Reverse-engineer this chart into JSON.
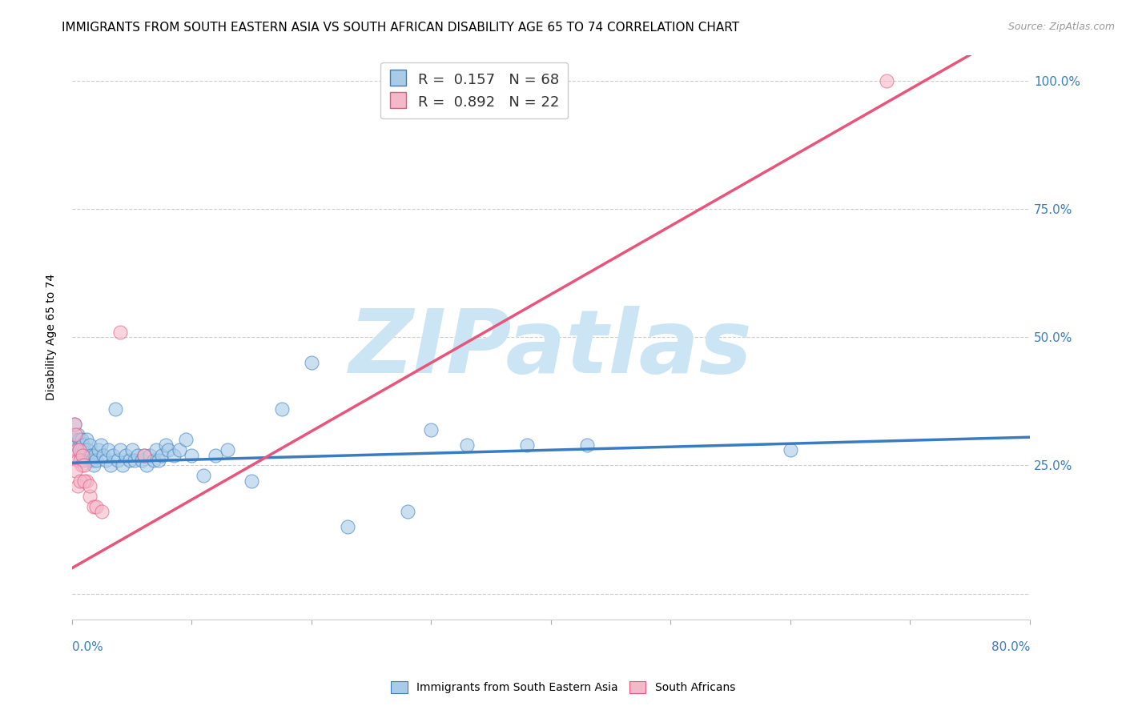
{
  "title": "IMMIGRANTS FROM SOUTH EASTERN ASIA VS SOUTH AFRICAN DISABILITY AGE 65 TO 74 CORRELATION CHART",
  "source": "Source: ZipAtlas.com",
  "ylabel": "Disability Age 65 to 74",
  "xmin": 0.0,
  "xmax": 0.8,
  "ymin": -0.05,
  "ymax": 1.05,
  "right_ytick_vals": [
    0.25,
    0.5,
    0.75,
    1.0
  ],
  "right_yticklabels": [
    "25.0%",
    "50.0%",
    "75.0%",
    "100.0%"
  ],
  "R_blue": 0.157,
  "N_blue": 68,
  "R_pink": 0.892,
  "N_pink": 22,
  "blue_color": "#a8cce8",
  "pink_color": "#f4b8cb",
  "blue_line_color": "#3a7cc1",
  "pink_line_color": "#e8547a",
  "blue_scatter": [
    [
      0.002,
      0.33
    ],
    [
      0.003,
      0.3
    ],
    [
      0.004,
      0.29
    ],
    [
      0.005,
      0.31
    ],
    [
      0.006,
      0.28
    ],
    [
      0.006,
      0.3
    ],
    [
      0.007,
      0.27
    ],
    [
      0.007,
      0.29
    ],
    [
      0.008,
      0.28
    ],
    [
      0.008,
      0.3
    ],
    [
      0.009,
      0.27
    ],
    [
      0.009,
      0.29
    ],
    [
      0.01,
      0.28
    ],
    [
      0.01,
      0.26
    ],
    [
      0.011,
      0.27
    ],
    [
      0.012,
      0.3
    ],
    [
      0.013,
      0.28
    ],
    [
      0.014,
      0.26
    ],
    [
      0.015,
      0.27
    ],
    [
      0.015,
      0.29
    ],
    [
      0.016,
      0.27
    ],
    [
      0.017,
      0.26
    ],
    [
      0.018,
      0.25
    ],
    [
      0.019,
      0.27
    ],
    [
      0.02,
      0.26
    ],
    [
      0.022,
      0.28
    ],
    [
      0.024,
      0.29
    ],
    [
      0.026,
      0.27
    ],
    [
      0.028,
      0.26
    ],
    [
      0.03,
      0.28
    ],
    [
      0.032,
      0.25
    ],
    [
      0.034,
      0.27
    ],
    [
      0.036,
      0.36
    ],
    [
      0.038,
      0.26
    ],
    [
      0.04,
      0.28
    ],
    [
      0.042,
      0.25
    ],
    [
      0.045,
      0.27
    ],
    [
      0.048,
      0.26
    ],
    [
      0.05,
      0.28
    ],
    [
      0.052,
      0.26
    ],
    [
      0.055,
      0.27
    ],
    [
      0.058,
      0.26
    ],
    [
      0.06,
      0.27
    ],
    [
      0.062,
      0.25
    ],
    [
      0.065,
      0.27
    ],
    [
      0.068,
      0.26
    ],
    [
      0.07,
      0.28
    ],
    [
      0.072,
      0.26
    ],
    [
      0.075,
      0.27
    ],
    [
      0.078,
      0.29
    ],
    [
      0.08,
      0.28
    ],
    [
      0.085,
      0.27
    ],
    [
      0.09,
      0.28
    ],
    [
      0.095,
      0.3
    ],
    [
      0.1,
      0.27
    ],
    [
      0.11,
      0.23
    ],
    [
      0.12,
      0.27
    ],
    [
      0.13,
      0.28
    ],
    [
      0.15,
      0.22
    ],
    [
      0.175,
      0.36
    ],
    [
      0.2,
      0.45
    ],
    [
      0.23,
      0.13
    ],
    [
      0.28,
      0.16
    ],
    [
      0.3,
      0.32
    ],
    [
      0.33,
      0.29
    ],
    [
      0.38,
      0.29
    ],
    [
      0.43,
      0.29
    ],
    [
      0.6,
      0.28
    ]
  ],
  "pink_scatter": [
    [
      0.002,
      0.33
    ],
    [
      0.003,
      0.31
    ],
    [
      0.004,
      0.28
    ],
    [
      0.005,
      0.26
    ],
    [
      0.006,
      0.28
    ],
    [
      0.007,
      0.26
    ],
    [
      0.008,
      0.25
    ],
    [
      0.009,
      0.27
    ],
    [
      0.01,
      0.25
    ],
    [
      0.012,
      0.22
    ],
    [
      0.015,
      0.19
    ],
    [
      0.018,
      0.17
    ],
    [
      0.02,
      0.17
    ],
    [
      0.025,
      0.16
    ],
    [
      0.04,
      0.51
    ],
    [
      0.003,
      0.24
    ],
    [
      0.005,
      0.21
    ],
    [
      0.007,
      0.22
    ],
    [
      0.01,
      0.22
    ],
    [
      0.015,
      0.21
    ],
    [
      0.06,
      0.27
    ],
    [
      0.68,
      1.0
    ]
  ],
  "blue_line_x": [
    0.0,
    0.8
  ],
  "blue_line_y": [
    0.255,
    0.305
  ],
  "pink_line_x": [
    0.0,
    0.75
  ],
  "pink_line_y": [
    0.05,
    1.05
  ],
  "watermark": "ZIPatlas",
  "watermark_color": "#cce5f5",
  "legend_blue_label": "R =  0.157   N = 68",
  "legend_pink_label": "R =  0.892   N = 22",
  "title_fontsize": 11,
  "label_fontsize": 10,
  "tick_fontsize": 10,
  "legend_fontsize": 13
}
